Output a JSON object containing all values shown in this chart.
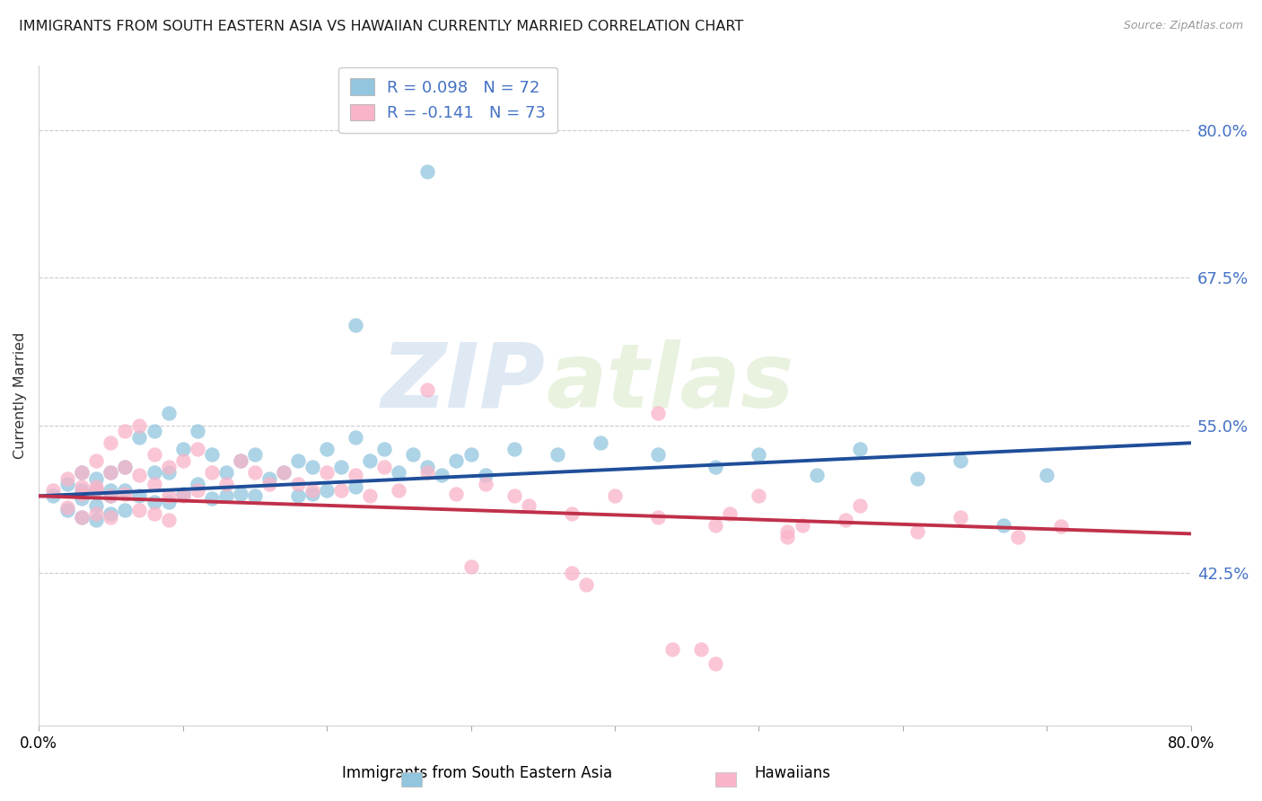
{
  "title": "IMMIGRANTS FROM SOUTH EASTERN ASIA VS HAWAIIAN CURRENTLY MARRIED CORRELATION CHART",
  "source": "Source: ZipAtlas.com",
  "ylabel": "Currently Married",
  "ytick_labels": [
    "80.0%",
    "67.5%",
    "55.0%",
    "42.5%"
  ],
  "ytick_values": [
    0.8,
    0.675,
    0.55,
    0.425
  ],
  "x_min": 0.0,
  "x_max": 0.8,
  "y_min": 0.295,
  "y_max": 0.855,
  "R1": 0.098,
  "N1": 72,
  "R2": -0.141,
  "N2": 73,
  "color_blue": "#92c5de",
  "color_pink": "#f9b4c8",
  "color_blue_line": "#1f4e99",
  "color_pink_line": "#c0304a",
  "color_ytick": "#4472c4",
  "color_legend_text": "#4472c4",
  "color_title": "#1a1a1a",
  "xtick_left": "0.0%",
  "xtick_right": "80.0%",
  "bottom_label1": "Immigrants from South Eastern Asia",
  "bottom_label2": "Hawaiians",
  "blue_line_y0": 0.49,
  "blue_line_y1": 0.535,
  "pink_line_y0": 0.49,
  "pink_line_y1": 0.458,
  "blue_points_x": [
    0.01,
    0.02,
    0.02,
    0.03,
    0.03,
    0.03,
    0.03,
    0.04,
    0.04,
    0.04,
    0.04,
    0.05,
    0.05,
    0.05,
    0.05,
    0.06,
    0.06,
    0.06,
    0.07,
    0.07,
    0.08,
    0.08,
    0.08,
    0.09,
    0.09,
    0.09,
    0.1,
    0.1,
    0.11,
    0.11,
    0.12,
    0.12,
    0.13,
    0.13,
    0.14,
    0.14,
    0.15,
    0.15,
    0.16,
    0.17,
    0.18,
    0.18,
    0.19,
    0.19,
    0.2,
    0.2,
    0.21,
    0.22,
    0.22,
    0.23,
    0.24,
    0.25,
    0.26,
    0.27,
    0.28,
    0.29,
    0.3,
    0.31,
    0.33,
    0.36,
    0.39,
    0.43,
    0.47,
    0.5,
    0.54,
    0.57,
    0.61,
    0.64,
    0.67,
    0.7,
    0.22,
    0.27
  ],
  "blue_points_y": [
    0.49,
    0.5,
    0.478,
    0.51,
    0.488,
    0.472,
    0.495,
    0.505,
    0.482,
    0.47,
    0.495,
    0.51,
    0.49,
    0.475,
    0.495,
    0.515,
    0.495,
    0.478,
    0.54,
    0.49,
    0.545,
    0.51,
    0.485,
    0.56,
    0.51,
    0.485,
    0.53,
    0.492,
    0.545,
    0.5,
    0.525,
    0.488,
    0.51,
    0.49,
    0.52,
    0.492,
    0.525,
    0.49,
    0.505,
    0.51,
    0.52,
    0.49,
    0.515,
    0.492,
    0.53,
    0.495,
    0.515,
    0.54,
    0.498,
    0.52,
    0.53,
    0.51,
    0.525,
    0.515,
    0.508,
    0.52,
    0.525,
    0.508,
    0.53,
    0.525,
    0.535,
    0.525,
    0.515,
    0.525,
    0.508,
    0.53,
    0.505,
    0.52,
    0.465,
    0.508,
    0.635,
    0.765
  ],
  "pink_points_x": [
    0.01,
    0.02,
    0.02,
    0.03,
    0.03,
    0.03,
    0.03,
    0.04,
    0.04,
    0.04,
    0.04,
    0.05,
    0.05,
    0.05,
    0.05,
    0.06,
    0.06,
    0.06,
    0.07,
    0.07,
    0.07,
    0.08,
    0.08,
    0.08,
    0.09,
    0.09,
    0.09,
    0.1,
    0.1,
    0.11,
    0.11,
    0.12,
    0.13,
    0.14,
    0.15,
    0.16,
    0.17,
    0.18,
    0.19,
    0.2,
    0.21,
    0.22,
    0.23,
    0.24,
    0.25,
    0.27,
    0.29,
    0.31,
    0.34,
    0.37,
    0.4,
    0.43,
    0.47,
    0.5,
    0.53,
    0.57,
    0.61,
    0.64,
    0.68,
    0.71,
    0.27,
    0.33,
    0.37,
    0.44,
    0.47,
    0.52,
    0.3,
    0.38,
    0.46,
    0.43,
    0.48,
    0.52,
    0.56
  ],
  "pink_points_y": [
    0.495,
    0.505,
    0.48,
    0.51,
    0.492,
    0.472,
    0.498,
    0.52,
    0.495,
    0.475,
    0.498,
    0.535,
    0.51,
    0.49,
    0.472,
    0.545,
    0.515,
    0.492,
    0.55,
    0.508,
    0.478,
    0.525,
    0.5,
    0.475,
    0.515,
    0.49,
    0.47,
    0.52,
    0.49,
    0.53,
    0.495,
    0.51,
    0.5,
    0.52,
    0.51,
    0.5,
    0.51,
    0.5,
    0.495,
    0.51,
    0.495,
    0.508,
    0.49,
    0.515,
    0.495,
    0.51,
    0.492,
    0.5,
    0.482,
    0.475,
    0.49,
    0.472,
    0.465,
    0.49,
    0.465,
    0.482,
    0.46,
    0.472,
    0.455,
    0.464,
    0.58,
    0.49,
    0.425,
    0.36,
    0.348,
    0.455,
    0.43,
    0.415,
    0.36,
    0.56,
    0.475,
    0.46,
    0.47
  ]
}
